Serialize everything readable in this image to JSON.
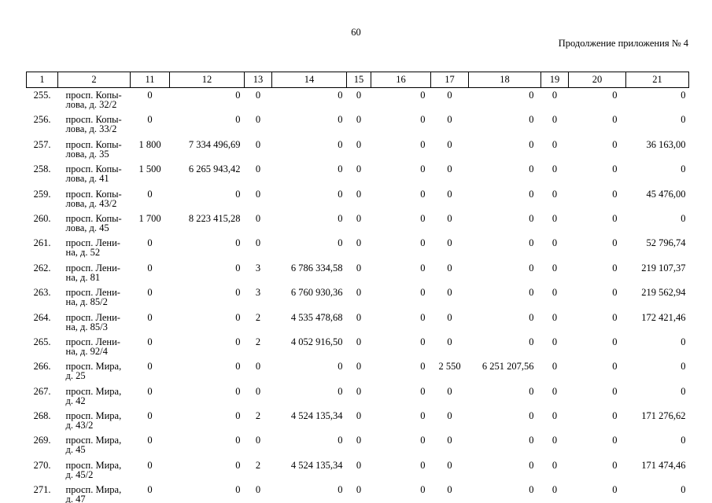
{
  "page": {
    "page_number": "60",
    "header_right": "Продолжение приложения № 4"
  },
  "table": {
    "header_labels": [
      "1",
      "2",
      "11",
      "12",
      "13",
      "14",
      "15",
      "16",
      "17",
      "18",
      "19",
      "20",
      "21"
    ],
    "rows": [
      {
        "no": "255.",
        "address_lines": [
          "просп. Копы-",
          "лова, д. 32/2"
        ],
        "values": [
          "0",
          "0",
          "0",
          "0",
          "0",
          "0",
          "0",
          "0",
          "0",
          "0",
          "0"
        ]
      },
      {
        "no": "256.",
        "address_lines": [
          "просп. Копы-",
          "лова, д. 33/2"
        ],
        "values": [
          "0",
          "0",
          "0",
          "0",
          "0",
          "0",
          "0",
          "0",
          "0",
          "0",
          "0"
        ]
      },
      {
        "no": "257.",
        "address_lines": [
          "просп. Копы-",
          "лова, д. 35"
        ],
        "values": [
          "1 800",
          "7 334 496,69",
          "0",
          "0",
          "0",
          "0",
          "0",
          "0",
          "0",
          "0",
          "36 163,00"
        ]
      },
      {
        "no": "258.",
        "address_lines": [
          "просп. Копы-",
          "лова, д. 41"
        ],
        "values": [
          "1 500",
          "6 265 943,42",
          "0",
          "0",
          "0",
          "0",
          "0",
          "0",
          "0",
          "0",
          "0"
        ]
      },
      {
        "no": "259.",
        "address_lines": [
          "просп. Копы-",
          "лова, д. 43/2"
        ],
        "values": [
          "0",
          "0",
          "0",
          "0",
          "0",
          "0",
          "0",
          "0",
          "0",
          "0",
          "45 476,00"
        ]
      },
      {
        "no": "260.",
        "address_lines": [
          "просп. Копы-",
          "лова, д. 45"
        ],
        "values": [
          "1 700",
          "8 223 415,28",
          "0",
          "0",
          "0",
          "0",
          "0",
          "0",
          "0",
          "0",
          "0"
        ]
      },
      {
        "no": "261.",
        "address_lines": [
          "просп. Лени-",
          "на, д. 52"
        ],
        "values": [
          "0",
          "0",
          "0",
          "0",
          "0",
          "0",
          "0",
          "0",
          "0",
          "0",
          "52 796,74"
        ]
      },
      {
        "no": "262.",
        "address_lines": [
          "просп. Лени-",
          "на, д. 81"
        ],
        "values": [
          "0",
          "0",
          "3",
          "6 786 334,58",
          "0",
          "0",
          "0",
          "0",
          "0",
          "0",
          "219 107,37"
        ]
      },
      {
        "no": "263.",
        "address_lines": [
          "просп. Лени-",
          "на, д. 85/2"
        ],
        "values": [
          "0",
          "0",
          "3",
          "6 760 930,36",
          "0",
          "0",
          "0",
          "0",
          "0",
          "0",
          "219 562,94"
        ]
      },
      {
        "no": "264.",
        "address_lines": [
          "просп. Лени-",
          "на, д. 85/3"
        ],
        "values": [
          "0",
          "0",
          "2",
          "4 535 478,68",
          "0",
          "0",
          "0",
          "0",
          "0",
          "0",
          "172 421,46"
        ]
      },
      {
        "no": "265.",
        "address_lines": [
          "просп. Лени-",
          "на, д. 92/4"
        ],
        "values": [
          "0",
          "0",
          "2",
          "4 052 916,50",
          "0",
          "0",
          "0",
          "0",
          "0",
          "0",
          "0"
        ]
      },
      {
        "no": "266.",
        "address_lines": [
          "просп. Мира,",
          "д. 25"
        ],
        "values": [
          "0",
          "0",
          "0",
          "0",
          "0",
          "0",
          "2 550",
          "6 251 207,56",
          "0",
          "0",
          "0"
        ]
      },
      {
        "no": "267.",
        "address_lines": [
          "просп. Мира,",
          "д. 42"
        ],
        "values": [
          "0",
          "0",
          "0",
          "0",
          "0",
          "0",
          "0",
          "0",
          "0",
          "0",
          "0"
        ]
      },
      {
        "no": "268.",
        "address_lines": [
          "просп. Мира,",
          "д. 43/2"
        ],
        "values": [
          "0",
          "0",
          "2",
          "4 524 135,34",
          "0",
          "0",
          "0",
          "0",
          "0",
          "0",
          "171 276,62"
        ]
      },
      {
        "no": "269.",
        "address_lines": [
          "просп. Мира,",
          "д. 45"
        ],
        "values": [
          "0",
          "0",
          "0",
          "0",
          "0",
          "0",
          "0",
          "0",
          "0",
          "0",
          "0"
        ]
      },
      {
        "no": "270.",
        "address_lines": [
          "просп. Мира,",
          "д. 45/2"
        ],
        "values": [
          "0",
          "0",
          "2",
          "4 524 135,34",
          "0",
          "0",
          "0",
          "0",
          "0",
          "0",
          "171 474,46"
        ]
      },
      {
        "no": "271.",
        "address_lines": [
          "просп. Мира,",
          "д. 47"
        ],
        "values": [
          "0",
          "0",
          "0",
          "0",
          "0",
          "0",
          "0",
          "0",
          "0",
          "0",
          "0"
        ]
      }
    ]
  }
}
